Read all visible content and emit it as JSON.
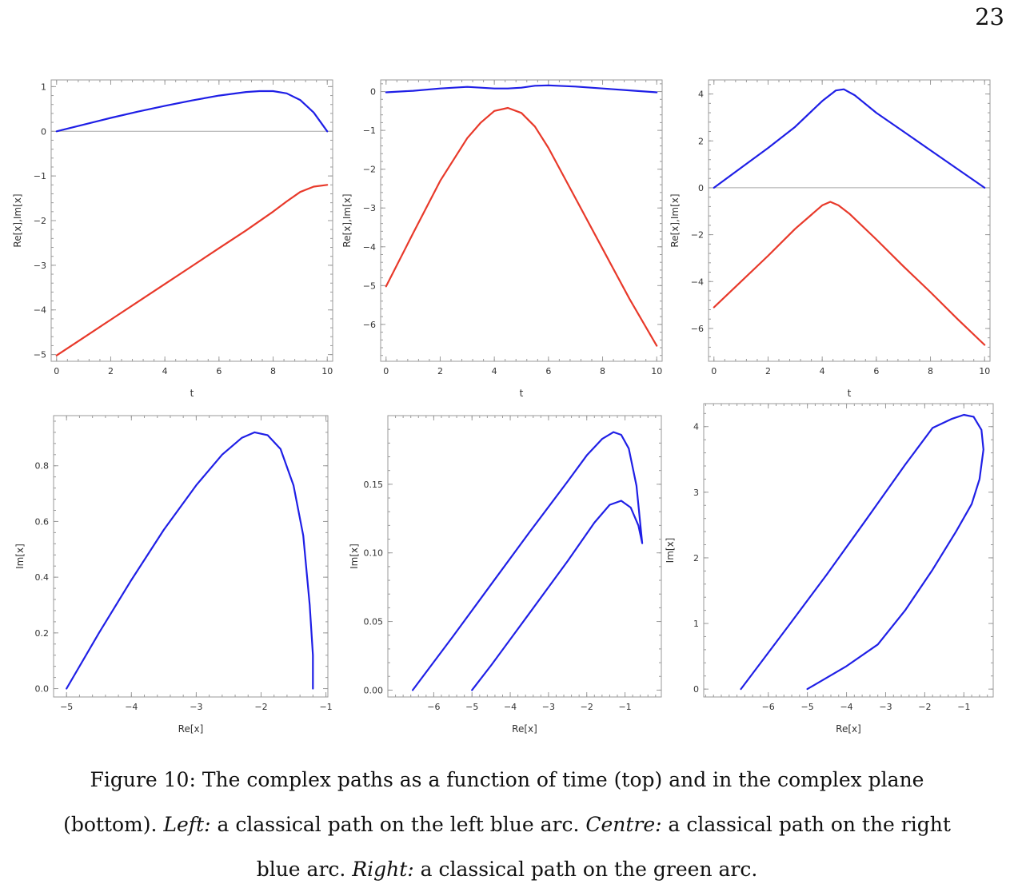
{
  "page_number": "23",
  "caption": {
    "lead": "Figure 10: The complex paths as a function of time (top) and in the complex plane",
    "open": "(bottom). ",
    "left_label": "Left:",
    "left_text": " a classical path on the left blue arc. ",
    "centre_label": "Centre:",
    "centre_text": " a classical path on the right",
    "last_line_start": "blue arc. ",
    "right_label": "Right:",
    "right_text": " a classical path on the green arc."
  },
  "colors": {
    "real": "#e8392a",
    "imag": "#1f1fe6",
    "zero_line": "#a8a8a8"
  },
  "chart_data": [
    {
      "id": "top-left",
      "type": "line",
      "title": "",
      "xlabel": "t",
      "ylabel": "Re[x],Im[x]",
      "xlim": [
        -0.2,
        10.2
      ],
      "ylim": [
        -5.15,
        1.15
      ],
      "xticks": [
        0,
        2,
        4,
        6,
        8,
        10
      ],
      "yticks": [
        1,
        0,
        -1,
        -2,
        -3,
        -4,
        -5
      ],
      "zero_line": true,
      "series": [
        {
          "component": "imag",
          "x": [
            0,
            1,
            2,
            3,
            4,
            5,
            6,
            7,
            7.5,
            8,
            8.5,
            9,
            9.5,
            10
          ],
          "y": [
            0,
            0.15,
            0.3,
            0.44,
            0.57,
            0.69,
            0.8,
            0.88,
            0.9,
            0.9,
            0.85,
            0.7,
            0.42,
            0
          ]
        },
        {
          "component": "real",
          "x": [
            0,
            1,
            2,
            3,
            4,
            5,
            6,
            7,
            8,
            8.5,
            9,
            9.5,
            10
          ],
          "y": [
            -5.02,
            -4.62,
            -4.22,
            -3.82,
            -3.42,
            -3.02,
            -2.62,
            -2.22,
            -1.8,
            -1.57,
            -1.36,
            -1.24,
            -1.2
          ]
        }
      ]
    },
    {
      "id": "top-centre",
      "type": "line",
      "title": "",
      "xlabel": "t",
      "ylabel": "Re[x],Im[x]",
      "xlim": [
        -0.2,
        10.2
      ],
      "ylim": [
        -6.95,
        0.3
      ],
      "xticks": [
        0,
        2,
        4,
        6,
        8,
        10
      ],
      "yticks": [
        0,
        -1,
        -2,
        -3,
        -4,
        -5,
        -6
      ],
      "zero_line": false,
      "series": [
        {
          "component": "imag",
          "x": [
            0,
            1,
            2,
            3,
            3.5,
            4,
            4.5,
            5,
            5.5,
            6,
            7,
            8,
            9,
            10
          ],
          "y": [
            -0.02,
            0.02,
            0.08,
            0.12,
            0.1,
            0.08,
            0.08,
            0.1,
            0.15,
            0.16,
            0.13,
            0.08,
            0.03,
            -0.02
          ]
        },
        {
          "component": "real",
          "x": [
            0,
            1,
            2,
            3,
            3.5,
            4,
            4.5,
            5,
            5.5,
            6,
            7,
            8,
            9,
            10
          ],
          "y": [
            -5.02,
            -3.65,
            -2.3,
            -1.2,
            -0.8,
            -0.5,
            -0.42,
            -0.55,
            -0.9,
            -1.45,
            -2.75,
            -4.05,
            -5.35,
            -6.55
          ]
        }
      ]
    },
    {
      "id": "top-right",
      "type": "line",
      "title": "",
      "xlabel": "t",
      "ylabel": "Re[x],Im[x]",
      "xlim": [
        -0.2,
        10.2
      ],
      "ylim": [
        -7.4,
        4.6
      ],
      "xticks": [
        0,
        2,
        4,
        6,
        8,
        10
      ],
      "yticks": [
        4,
        2,
        0,
        -2,
        -4,
        -6
      ],
      "zero_line": true,
      "series": [
        {
          "component": "imag",
          "x": [
            0,
            1,
            2,
            3,
            4,
            4.5,
            4.8,
            5.2,
            6,
            7,
            8,
            9,
            10
          ],
          "y": [
            0,
            0.85,
            1.7,
            2.6,
            3.7,
            4.15,
            4.2,
            3.95,
            3.2,
            2.4,
            1.6,
            0.8,
            0
          ]
        },
        {
          "component": "real",
          "x": [
            0,
            1,
            2,
            3,
            4,
            4.3,
            4.6,
            5,
            6,
            7,
            8,
            9,
            10
          ],
          "y": [
            -5.1,
            -4.0,
            -2.9,
            -1.75,
            -0.75,
            -0.6,
            -0.75,
            -1.1,
            -2.2,
            -3.35,
            -4.45,
            -5.6,
            -6.7
          ]
        }
      ]
    },
    {
      "id": "bottom-left",
      "type": "line",
      "title": "",
      "xlabel": "Re[x]",
      "ylabel": "Im[x]",
      "xlim": [
        -5.2,
        -0.97
      ],
      "ylim": [
        -0.03,
        0.98
      ],
      "xticks": [
        -5,
        -4,
        -3,
        -2,
        -1
      ],
      "yticks": [
        0.8,
        0.6,
        0.4,
        0.2,
        0.0
      ],
      "ytick_labels": [
        "0.8",
        "0.6",
        "0.4",
        "0.2",
        "0.0"
      ],
      "zero_line": false,
      "series": [
        {
          "component": "path",
          "x": [
            -5.0,
            -4.5,
            -4.0,
            -3.5,
            -3.0,
            -2.6,
            -2.3,
            -2.1,
            -1.9,
            -1.7,
            -1.5,
            -1.35,
            -1.25,
            -1.2,
            -1.2
          ],
          "y": [
            0.0,
            0.2,
            0.39,
            0.57,
            0.73,
            0.84,
            0.9,
            0.92,
            0.91,
            0.86,
            0.73,
            0.55,
            0.3,
            0.12,
            0.0
          ]
        }
      ]
    },
    {
      "id": "bottom-centre",
      "type": "line",
      "title": "",
      "xlabel": "Re[x]",
      "ylabel": "Im[x]",
      "xlim": [
        -7.2,
        -0.05
      ],
      "ylim": [
        -0.005,
        0.2
      ],
      "xticks": [
        -6,
        -5,
        -4,
        -3,
        -2,
        -1
      ],
      "yticks": [
        0.15,
        0.1,
        0.05,
        0.0
      ],
      "ytick_labels": [
        "0.15",
        "0.10",
        "0.05",
        "0.00"
      ],
      "zero_line": false,
      "series": [
        {
          "component": "path",
          "x": [
            -6.55,
            -5.5,
            -4.5,
            -3.5,
            -2.5,
            -2.0,
            -1.6,
            -1.3,
            -1.1,
            -0.9,
            -0.7,
            -0.55,
            -0.65,
            -0.85,
            -1.1,
            -1.4,
            -1.8,
            -2.5,
            -3.5,
            -4.5,
            -5.0
          ],
          "y": [
            0.0,
            0.039,
            0.077,
            0.115,
            0.152,
            0.171,
            0.183,
            0.188,
            0.186,
            0.176,
            0.149,
            0.107,
            0.12,
            0.133,
            0.138,
            0.135,
            0.122,
            0.094,
            0.056,
            0.018,
            0.0
          ]
        }
      ]
    },
    {
      "id": "bottom-right",
      "type": "line",
      "title": "",
      "xlabel": "Re[x]",
      "ylabel": "Im[x]",
      "xlim": [
        -7.65,
        -0.25
      ],
      "ylim": [
        -0.12,
        4.35
      ],
      "xticks": [
        -6,
        -5,
        -4,
        -3,
        -2,
        -1
      ],
      "yticks": [
        4,
        3,
        2,
        1,
        0
      ],
      "zero_line": false,
      "series": [
        {
          "component": "path",
          "x": [
            -6.7,
            -5.5,
            -4.5,
            -3.5,
            -2.5,
            -1.8,
            -1.3,
            -1.0,
            -0.75,
            -0.55,
            -0.5,
            -0.6,
            -0.8,
            -1.2,
            -1.8,
            -2.5,
            -3.2,
            -4.0,
            -5.0
          ],
          "y": [
            0.0,
            0.95,
            1.75,
            2.58,
            3.42,
            3.98,
            4.12,
            4.18,
            4.15,
            3.95,
            3.65,
            3.2,
            2.82,
            2.4,
            1.82,
            1.2,
            0.68,
            0.35,
            0.0
          ]
        }
      ]
    }
  ]
}
